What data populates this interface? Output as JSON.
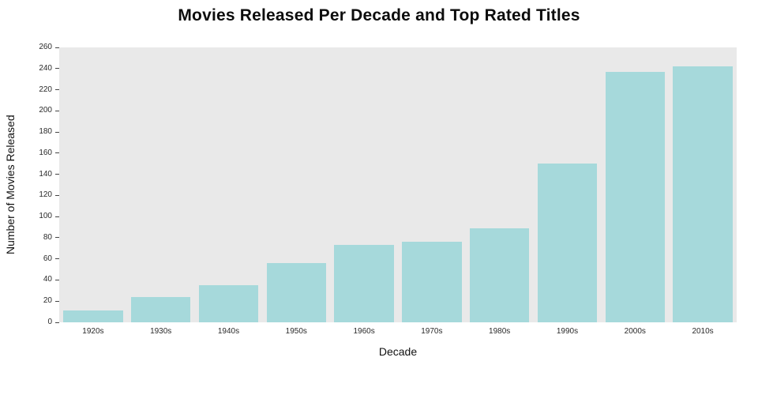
{
  "chart_data": {
    "type": "bar",
    "title": "Movies Released Per Decade and Top Rated Titles",
    "xlabel": "Decade",
    "ylabel": "Number of Movies Released",
    "categories": [
      "1920s",
      "1930s",
      "1940s",
      "1950s",
      "1960s",
      "1970s",
      "1980s",
      "1990s",
      "2000s",
      "2010s"
    ],
    "values": [
      11,
      24,
      35,
      56,
      73,
      76,
      89,
      150,
      237,
      242
    ],
    "ylim": [
      0,
      260
    ],
    "yticks": [
      0,
      20,
      40,
      60,
      80,
      100,
      120,
      140,
      160,
      180,
      200,
      220,
      240,
      260
    ],
    "grid": false,
    "legend": "none",
    "bar_color": "#a6d9db",
    "plot_bg": "#e9e9e9"
  }
}
